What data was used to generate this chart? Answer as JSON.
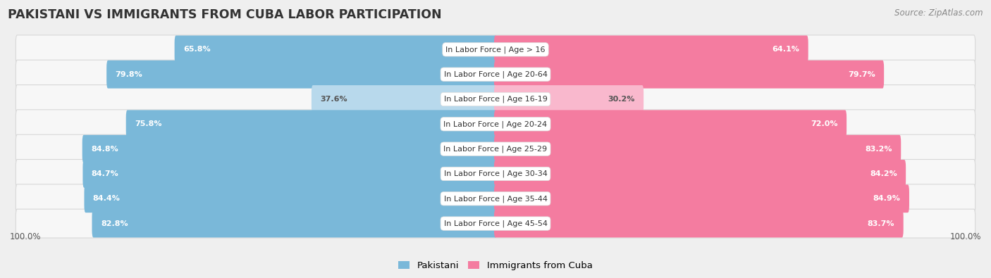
{
  "title": "PAKISTANI VS IMMIGRANTS FROM CUBA LABOR PARTICIPATION",
  "source": "Source: ZipAtlas.com",
  "categories": [
    "In Labor Force | Age > 16",
    "In Labor Force | Age 20-64",
    "In Labor Force | Age 16-19",
    "In Labor Force | Age 20-24",
    "In Labor Force | Age 25-29",
    "In Labor Force | Age 30-34",
    "In Labor Force | Age 35-44",
    "In Labor Force | Age 45-54"
  ],
  "pakistani_values": [
    65.8,
    79.8,
    37.6,
    75.8,
    84.8,
    84.7,
    84.4,
    82.8
  ],
  "cuba_values": [
    64.1,
    79.7,
    30.2,
    72.0,
    83.2,
    84.2,
    84.9,
    83.7
  ],
  "pakistani_color": "#7ab8d9",
  "pakistani_color_light": "#b8d9ec",
  "cuba_color": "#f47ca0",
  "cuba_color_light": "#f9b8cd",
  "max_value": 100.0,
  "background_color": "#efefef",
  "row_bg_color": "#f7f7f7",
  "row_border_color": "#d8d8d8",
  "title_fontsize": 12.5,
  "source_fontsize": 8.5,
  "label_fontsize": 8,
  "value_fontsize": 8,
  "legend_fontsize": 9.5,
  "axis_label_fontsize": 8.5
}
